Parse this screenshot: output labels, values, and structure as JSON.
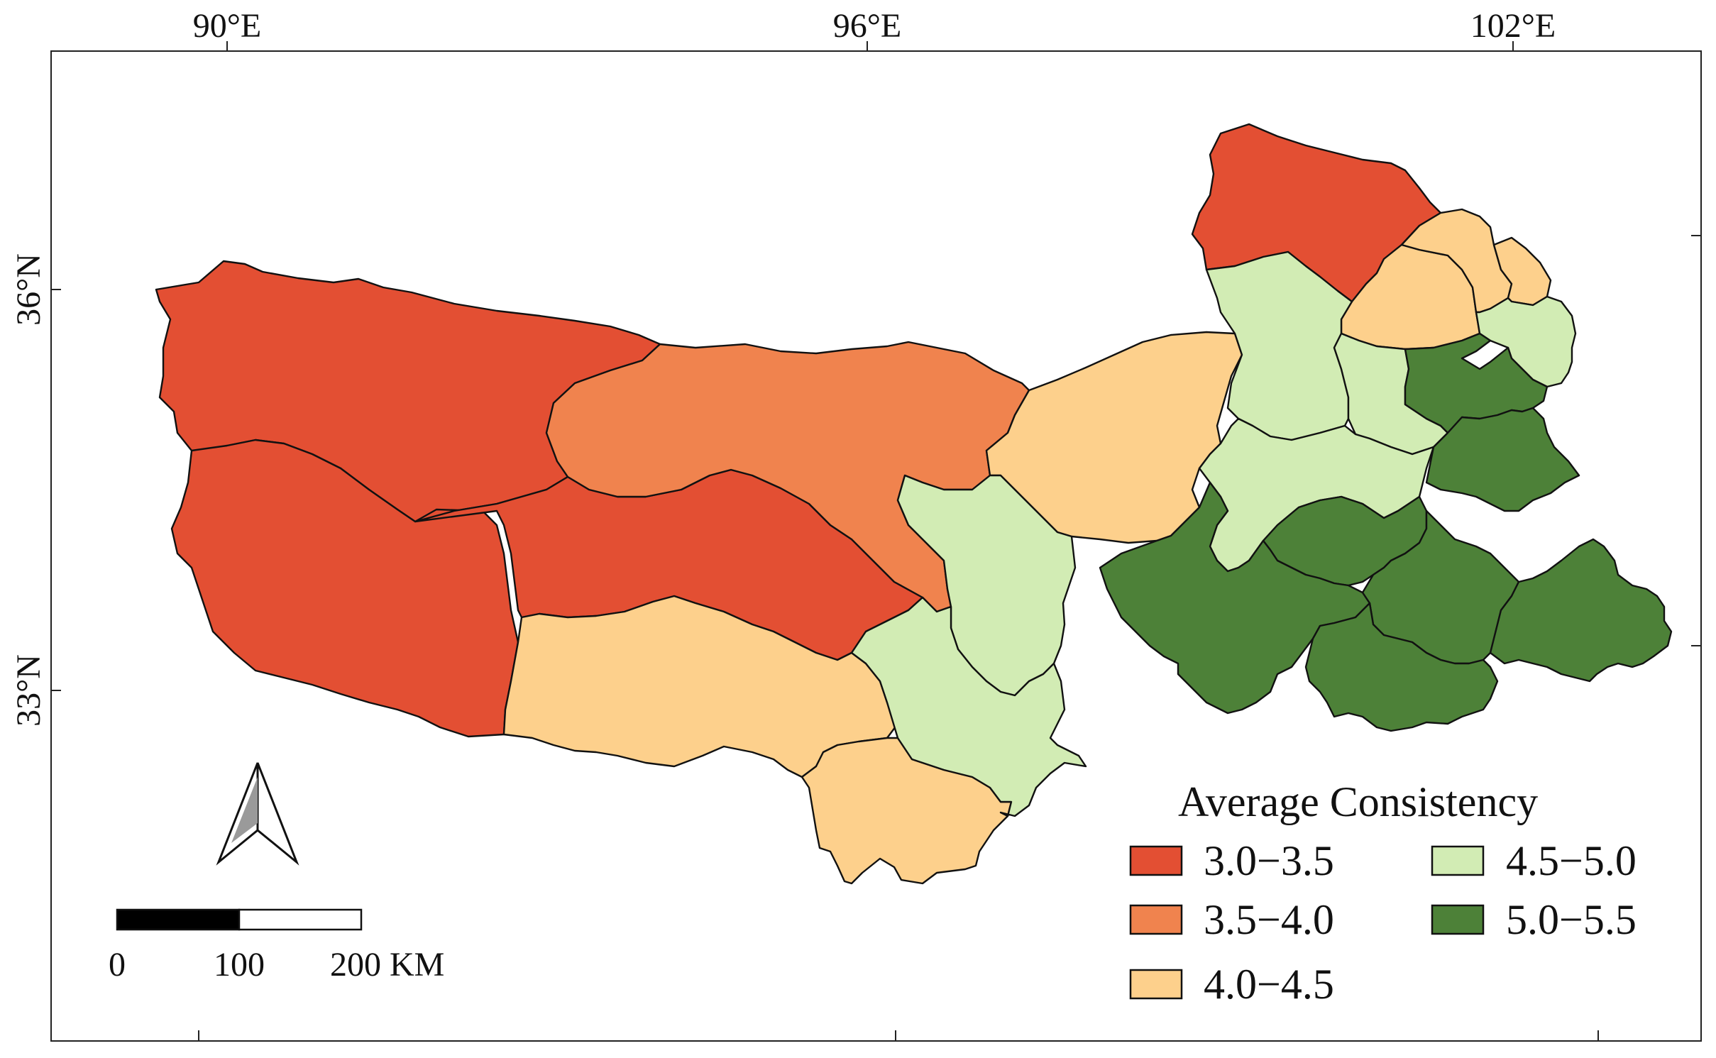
{
  "map": {
    "longitude_labels": [
      "90°E",
      "96°E",
      "102°E"
    ],
    "latitude_labels": [
      "36°N",
      "33°N"
    ]
  },
  "legend": {
    "title": "Average Consistency",
    "classes": [
      {
        "label": "3.0−3.5",
        "color": "#e34f33"
      },
      {
        "label": "3.5−4.0",
        "color": "#f0834e"
      },
      {
        "label": "4.0−4.5",
        "color": "#fdd08c"
      },
      {
        "label": "4.5−5.0",
        "color": "#d2ecb4"
      },
      {
        "label": "5.0−5.5",
        "color": "#4d8138"
      }
    ]
  },
  "scale_bar": {
    "labels": [
      "0",
      "100",
      "200 KM"
    ]
  },
  "regions": [
    {
      "name": "northwest-basin",
      "class": 0
    },
    {
      "name": "southwest-basin",
      "class": 0
    },
    {
      "name": "central-basin",
      "class": 0
    },
    {
      "name": "northeast-top-basin",
      "class": 0
    },
    {
      "name": "central-north-basin",
      "class": 1
    },
    {
      "name": "south-central-basin",
      "class": 2
    },
    {
      "name": "south-basin",
      "class": 2
    },
    {
      "name": "east-central-basin",
      "class": 2
    },
    {
      "name": "northeast-basin-a",
      "class": 2
    },
    {
      "name": "northeast-basin-b",
      "class": 2
    },
    {
      "name": "northeast-basin-c",
      "class": 2
    },
    {
      "name": "middle-strip-north",
      "class": 3
    },
    {
      "name": "middle-strip-south",
      "class": 3
    },
    {
      "name": "east-basin-a",
      "class": 3
    },
    {
      "name": "east-basin-b",
      "class": 3
    },
    {
      "name": "east-basin-c",
      "class": 3
    },
    {
      "name": "east-basin-d",
      "class": 3
    },
    {
      "name": "far-east-basin-a",
      "class": 4
    },
    {
      "name": "far-east-basin-b",
      "class": 4
    },
    {
      "name": "southeast-basin-a",
      "class": 4
    },
    {
      "name": "southeast-basin-b",
      "class": 4
    },
    {
      "name": "southeast-basin-c",
      "class": 4
    },
    {
      "name": "southeast-basin-d",
      "class": 4
    },
    {
      "name": "southeast-basin-e",
      "class": 4
    }
  ]
}
